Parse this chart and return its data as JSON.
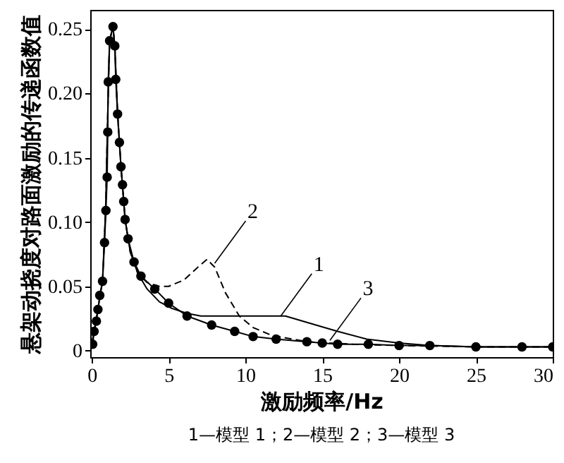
{
  "chart_data": {
    "type": "line",
    "xlabel": "激励频率/Hz",
    "ylabel": "悬架动挠度对路面激励的传递函数值",
    "xlim": [
      -0.1,
      30
    ],
    "ylim": [
      -0.005,
      0.265
    ],
    "xticks": [
      0,
      5,
      10,
      15,
      20,
      25,
      30
    ],
    "yticks": [
      0,
      {
        "value": 0.05,
        "label": "0.05"
      },
      {
        "value": 0.1,
        "label": "0.10"
      },
      {
        "value": 0.15,
        "label": "0.15"
      },
      {
        "value": 0.2,
        "label": "0.20"
      },
      {
        "value": 0.25,
        "label": "0.25"
      }
    ],
    "grid": false,
    "series": [
      {
        "color": "#000000",
        "marker": "none",
        "line_style": "solid",
        "x": [
          0,
          0.4,
          0.7,
          0.9,
          1.05,
          1.16,
          1.38,
          1.5,
          1.68,
          1.9,
          2.17,
          2.5,
          3.0,
          3.6,
          4.4,
          5.2,
          6.2,
          7.1,
          10,
          12.6,
          14,
          16,
          17.9,
          20,
          22,
          25,
          30
        ],
        "values": [
          0.005,
          0.032,
          0.054,
          0.109,
          0.19,
          0.241,
          0.252,
          0.237,
          0.184,
          0.143,
          0.102,
          0.077,
          0.06,
          0.048,
          0.038,
          0.033,
          0.029,
          0.027,
          0.027,
          0.027,
          0.022,
          0.015,
          0.009,
          0.006,
          0.004,
          0.003,
          0.003
        ]
      },
      {
        "color": "#000000",
        "marker": "none",
        "line_style": "dashed",
        "x": [
          0,
          0.4,
          0.7,
          0.9,
          1.05,
          1.16,
          1.38,
          1.5,
          1.68,
          1.9,
          2.17,
          2.5,
          3.0,
          3.6,
          4.4,
          5.0,
          6.0,
          7.0,
          7.5,
          8.0,
          8.7,
          9.6,
          10.5,
          11.7,
          14,
          17,
          20,
          25,
          30
        ],
        "values": [
          0.005,
          0.032,
          0.054,
          0.109,
          0.19,
          0.241,
          0.252,
          0.237,
          0.184,
          0.143,
          0.102,
          0.077,
          0.06,
          0.053,
          0.05,
          0.05,
          0.055,
          0.066,
          0.071,
          0.065,
          0.045,
          0.027,
          0.018,
          0.012,
          0.007,
          0.005,
          0.004,
          0.003,
          0.003
        ]
      },
      {
        "color": "#000000",
        "marker": "circle",
        "line_style": "solid",
        "x": [
          0.06,
          0.15,
          0.3,
          0.4,
          0.52,
          0.7,
          0.83,
          0.92,
          1.0,
          1.04,
          1.07,
          1.16,
          1.38,
          1.5,
          1.56,
          1.68,
          1.8,
          1.9,
          2.0,
          2.08,
          2.17,
          2.36,
          2.75,
          3.2,
          4.1,
          5.0,
          6.2,
          7.8,
          9.3,
          10.5,
          12,
          14,
          15,
          16,
          18,
          20,
          22,
          25,
          28,
          30
        ],
        "values": [
          0.005,
          0.015,
          0.023,
          0.032,
          0.043,
          0.054,
          0.084,
          0.109,
          0.135,
          0.17,
          0.209,
          0.241,
          0.252,
          0.237,
          0.211,
          0.184,
          0.162,
          0.143,
          0.129,
          0.116,
          0.102,
          0.087,
          0.069,
          0.058,
          0.048,
          0.037,
          0.027,
          0.02,
          0.015,
          0.011,
          0.009,
          0.007,
          0.006,
          0.005,
          0.005,
          0.004,
          0.004,
          0.003,
          0.003,
          0.003
        ]
      }
    ],
    "annotations": [
      {
        "text": "2",
        "x": 8.0,
        "y": 0.068
      },
      {
        "text": "1",
        "x": 12.3,
        "y": 0.027
      },
      {
        "text": "3",
        "x": 15.5,
        "y": 0.008
      },
      "1—模型 1；2—模型 2；3—模型 3"
    ]
  }
}
